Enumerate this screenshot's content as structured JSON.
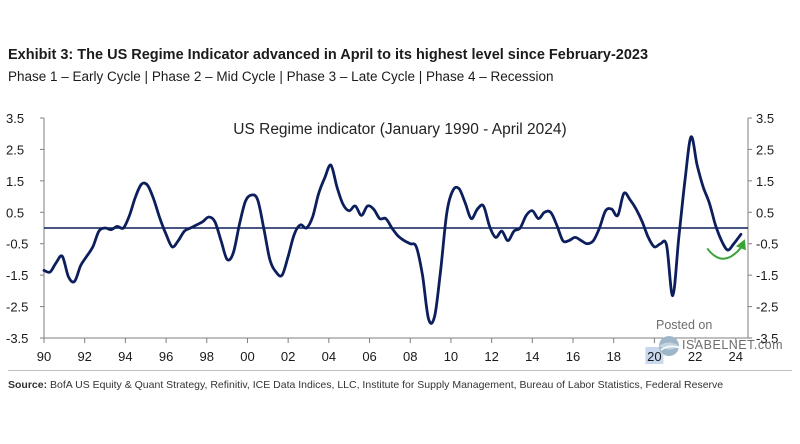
{
  "header": {
    "title": "Exhibit 3: The US Regime Indicator advanced in April to its highest level since February-2023",
    "subtitle": "Phase 1 – Early Cycle | Phase 2 – Mid Cycle | Phase 3 – Late Cycle | Phase 4 – Recession"
  },
  "footer": {
    "source_label": "Source:",
    "source_text": "BofA US Equity & Quant Strategy, Refinitiv, ICE Data Indices, LLC, Institute for Supply Management, Bureau of Labor Statistics, Federal Reserve"
  },
  "watermark": {
    "posted": "Posted on",
    "site": "ISABELNET.com"
  },
  "colors": {
    "line": "#0c1f5c",
    "zero_line": "#0c1f5c",
    "arrow": "#3aa335",
    "text": "#1a1a1a"
  },
  "chart_data": {
    "type": "line",
    "title": "US Regime indicator (January 1990 - April 2024)",
    "xlabel": "",
    "ylabel": "",
    "xlim": [
      1990,
      2024.6
    ],
    "ylim": [
      -3.5,
      3.5
    ],
    "y_ticks_left": [
      "3.5",
      "2.5",
      "1.5",
      "0.5",
      "-0.5",
      "-1.5",
      "-2.5",
      "-3.5"
    ],
    "y_ticks_right": [
      "3.5",
      "2.5",
      "1.5",
      "0.5",
      "-0.5",
      "-1.5",
      "-2.5",
      "-3.5"
    ],
    "x_ticks": [
      "90",
      "92",
      "94",
      "96",
      "98",
      "00",
      "02",
      "04",
      "06",
      "08",
      "10",
      "12",
      "14",
      "16",
      "18",
      "20",
      "22",
      "24"
    ],
    "highlighted_tick": "20",
    "annotation": "green upward arrow marking the recent rise",
    "series": [
      {
        "name": "US Regime indicator",
        "x": [
          1990.0,
          1990.3,
          1990.6,
          1990.9,
          1991.2,
          1991.5,
          1991.8,
          1992.1,
          1992.4,
          1992.7,
          1993.0,
          1993.3,
          1993.6,
          1993.9,
          1994.2,
          1994.5,
          1994.8,
          1995.1,
          1995.4,
          1995.7,
          1996.0,
          1996.3,
          1996.6,
          1996.9,
          1997.2,
          1997.5,
          1997.8,
          1998.1,
          1998.4,
          1998.7,
          1999.0,
          1999.3,
          1999.6,
          1999.9,
          2000.2,
          2000.5,
          2000.8,
          2001.1,
          2001.4,
          2001.7,
          2002.0,
          2002.3,
          2002.6,
          2002.9,
          2003.2,
          2003.5,
          2003.8,
          2004.1,
          2004.4,
          2004.7,
          2005.0,
          2005.3,
          2005.6,
          2005.9,
          2006.2,
          2006.5,
          2006.8,
          2007.1,
          2007.4,
          2007.7,
          2008.0,
          2008.3,
          2008.6,
          2008.9,
          2009.2,
          2009.5,
          2009.8,
          2010.1,
          2010.4,
          2010.7,
          2011.0,
          2011.3,
          2011.6,
          2011.9,
          2012.2,
          2012.5,
          2012.8,
          2013.1,
          2013.4,
          2013.7,
          2014.0,
          2014.3,
          2014.6,
          2014.9,
          2015.2,
          2015.5,
          2015.8,
          2016.1,
          2016.4,
          2016.7,
          2017.0,
          2017.3,
          2017.6,
          2017.9,
          2018.2,
          2018.5,
          2018.8,
          2019.1,
          2019.4,
          2019.7,
          2020.0,
          2020.3,
          2020.6,
          2020.9,
          2021.2,
          2021.5,
          2021.8,
          2022.1,
          2022.4,
          2022.7,
          2023.0,
          2023.3,
          2023.6,
          2023.9,
          2024.25
        ],
        "values": [
          -1.35,
          -1.4,
          -1.1,
          -0.9,
          -1.55,
          -1.7,
          -1.2,
          -0.9,
          -0.6,
          -0.1,
          0.0,
          -0.05,
          0.05,
          0.0,
          0.4,
          1.0,
          1.4,
          1.35,
          0.9,
          0.3,
          -0.2,
          -0.6,
          -0.4,
          -0.1,
          0.0,
          0.1,
          0.2,
          0.35,
          0.2,
          -0.4,
          -1.0,
          -0.8,
          0.1,
          0.85,
          1.05,
          0.9,
          0.0,
          -1.0,
          -1.4,
          -1.5,
          -0.9,
          -0.2,
          0.1,
          0.0,
          0.35,
          1.1,
          1.6,
          2.0,
          1.3,
          0.75,
          0.55,
          0.7,
          0.4,
          0.7,
          0.6,
          0.3,
          0.3,
          0.0,
          -0.25,
          -0.4,
          -0.5,
          -0.6,
          -1.5,
          -2.9,
          -2.8,
          -1.3,
          0.5,
          1.2,
          1.25,
          0.8,
          0.3,
          0.6,
          0.7,
          0.05,
          -0.3,
          -0.1,
          -0.4,
          -0.1,
          0.0,
          0.4,
          0.55,
          0.3,
          0.5,
          0.5,
          0.1,
          -0.4,
          -0.4,
          -0.3,
          -0.4,
          -0.5,
          -0.4,
          0.0,
          0.55,
          0.6,
          0.4,
          1.1,
          0.9,
          0.6,
          0.2,
          -0.3,
          -0.6,
          -0.5,
          -0.55,
          -2.15,
          -0.3,
          1.5,
          2.9,
          2.0,
          1.3,
          0.8,
          0.1,
          -0.4,
          -0.7,
          -0.5,
          -0.2
        ]
      }
    ]
  }
}
